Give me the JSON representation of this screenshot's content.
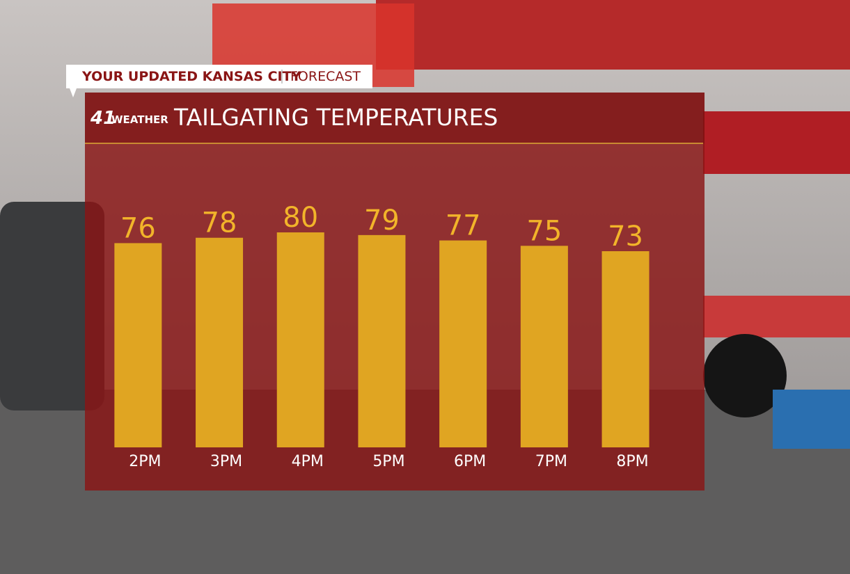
{
  "header": {
    "banner": "YOUR UPDATED KANSAS CITY",
    "banner_sub": "FORECAST",
    "logo_number": "41",
    "logo_text": "WEATHER"
  },
  "chart_data": {
    "type": "bar",
    "title": "TAILGATING TEMPERATURES",
    "categories": [
      "2PM",
      "3PM",
      "4PM",
      "5PM",
      "6PM",
      "7PM",
      "8PM"
    ],
    "values": [
      76,
      78,
      80,
      79,
      77,
      75,
      73
    ],
    "color": "#e0a522"
  }
}
